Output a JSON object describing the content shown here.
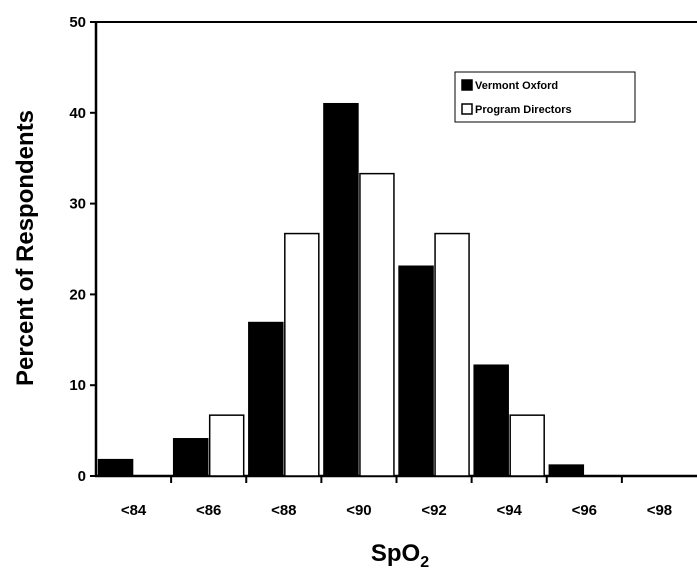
{
  "chart_data": {
    "type": "bar",
    "categories": [
      "<84",
      "<86",
      "<88",
      "<90",
      "<92",
      "<94",
      "<96",
      "<98"
    ],
    "series": [
      {
        "name": "Vermont Oxford",
        "values": [
          1.8,
          4.1,
          16.9,
          41.0,
          23.1,
          12.2,
          1.2,
          0
        ],
        "color": "#000000"
      },
      {
        "name": "Program Directors",
        "values": [
          0,
          6.7,
          26.7,
          33.3,
          26.7,
          6.7,
          0,
          0
        ],
        "color": "#ffffff"
      }
    ],
    "ylabel": "Percent of Respondents",
    "xlabel": {
      "main": "SpO",
      "subscript": "2"
    },
    "ylim": [
      0,
      50
    ],
    "yticks": [
      "0",
      "10",
      "20",
      "30",
      "40",
      "50"
    ],
    "grid": false,
    "legend_position": "top-right"
  }
}
